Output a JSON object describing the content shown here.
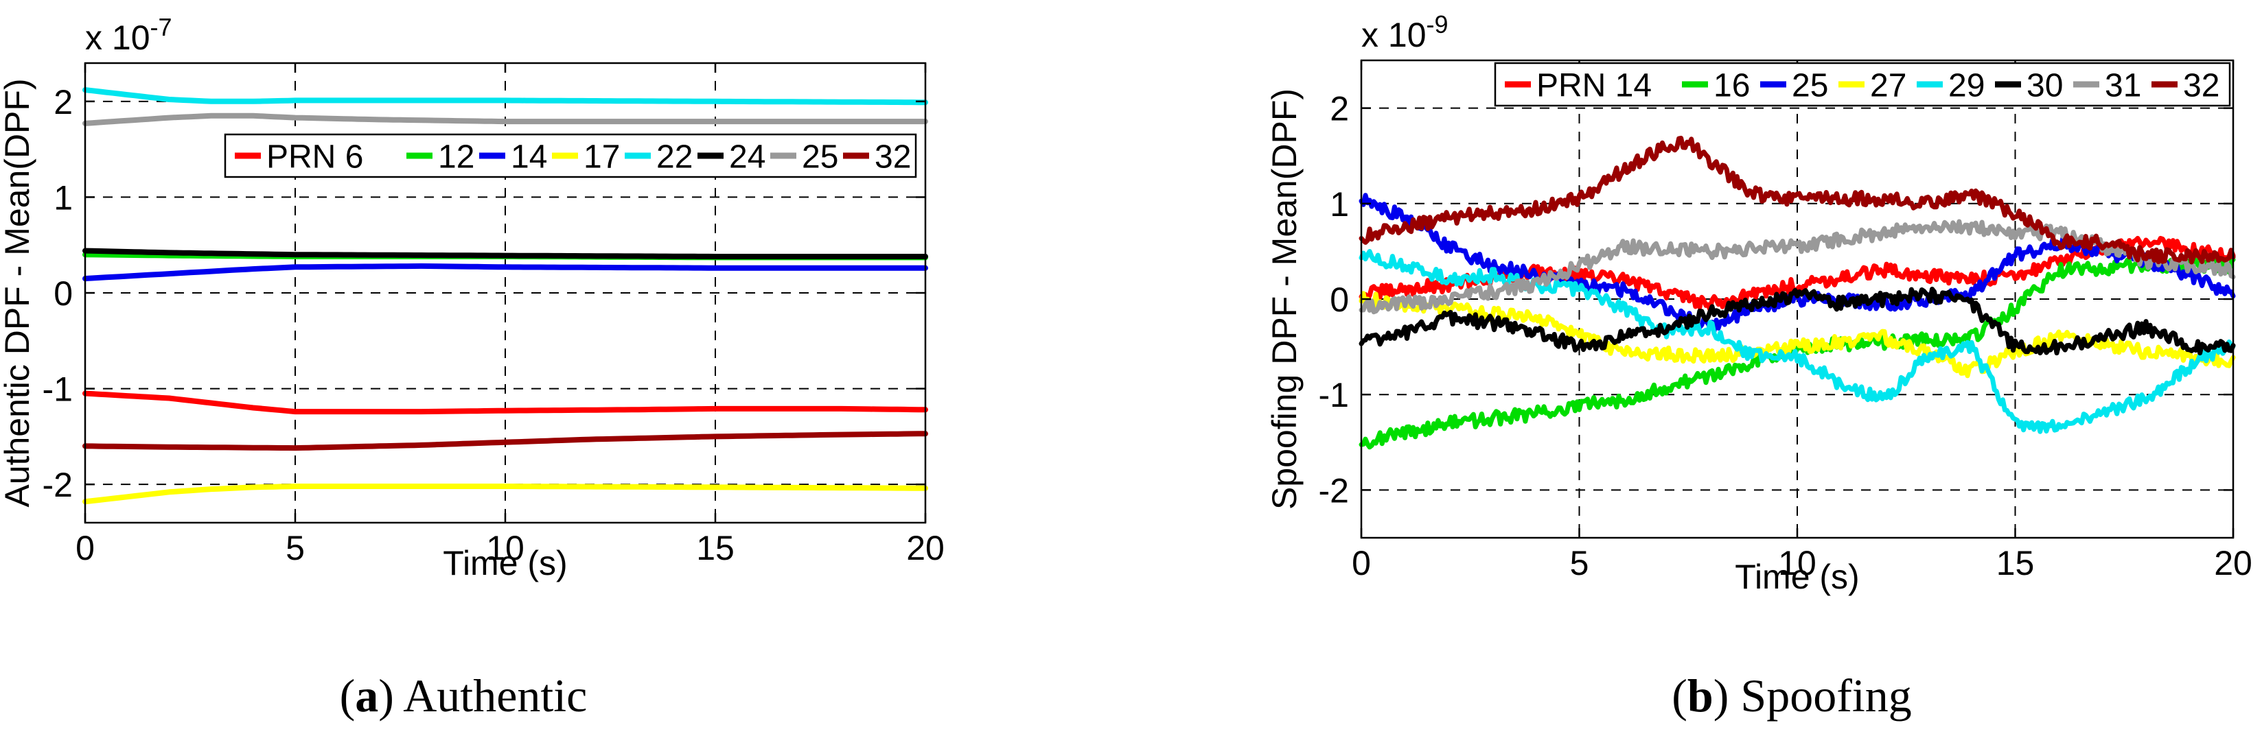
{
  "figure": {
    "captions": [
      {
        "label": "(a)",
        "letter": "a",
        "text": "Authentic"
      },
      {
        "label": "(b)",
        "letter": "b",
        "text": "Spoofing"
      }
    ]
  },
  "chart_data": [
    {
      "type": "line",
      "id": "authentic",
      "title": "",
      "xlabel": "Time (s)",
      "ylabel": "Authentic DPF - Mean(DPF)",
      "exponent_label": "x 10",
      "exponent_power": "-7",
      "xlim": [
        0,
        20
      ],
      "ylim": [
        -2.4,
        2.4
      ],
      "xticks": [
        0,
        5,
        10,
        15,
        20
      ],
      "yticks": [
        -2,
        -1,
        0,
        1,
        2
      ],
      "grid": "dashed",
      "legend_position": "upper-right",
      "legend_prefix": "PRN",
      "noise": 0,
      "series": [
        {
          "name": "6",
          "color": "#ff0000",
          "x": [
            0,
            2,
            4,
            5,
            8,
            10,
            13,
            15,
            18,
            20
          ],
          "y": [
            -1.05,
            -1.1,
            -1.2,
            -1.24,
            -1.24,
            -1.23,
            -1.22,
            -1.21,
            -1.21,
            -1.22
          ]
        },
        {
          "name": "12",
          "color": "#00dd00",
          "x": [
            0,
            2,
            5,
            10,
            15,
            20
          ],
          "y": [
            0.4,
            0.39,
            0.38,
            0.38,
            0.37,
            0.37
          ]
        },
        {
          "name": "14",
          "color": "#0000ee",
          "x": [
            0,
            2,
            4,
            5,
            8,
            10,
            15,
            20
          ],
          "y": [
            0.15,
            0.2,
            0.25,
            0.27,
            0.28,
            0.27,
            0.26,
            0.26
          ]
        },
        {
          "name": "17",
          "color": "#ffff00",
          "x": [
            0,
            1,
            2,
            3,
            4,
            5,
            10,
            15,
            20
          ],
          "y": [
            -2.18,
            -2.13,
            -2.08,
            -2.05,
            -2.03,
            -2.02,
            -2.02,
            -2.03,
            -2.04
          ]
        },
        {
          "name": "22",
          "color": "#00e5ee",
          "x": [
            0,
            1,
            2,
            3,
            4,
            5,
            10,
            15,
            20
          ],
          "y": [
            2.12,
            2.07,
            2.02,
            2.0,
            2.0,
            2.01,
            2.01,
            2.0,
            1.99
          ]
        },
        {
          "name": "24",
          "color": "#000000",
          "x": [
            0,
            2,
            5,
            10,
            15,
            20
          ],
          "y": [
            0.44,
            0.42,
            0.4,
            0.39,
            0.38,
            0.38
          ]
        },
        {
          "name": "25",
          "color": "#999999",
          "x": [
            0,
            1,
            2,
            3,
            4,
            5,
            7,
            10,
            15,
            20
          ],
          "y": [
            1.77,
            1.8,
            1.83,
            1.85,
            1.85,
            1.83,
            1.81,
            1.79,
            1.79,
            1.79
          ]
        },
        {
          "name": "32",
          "color": "#990000",
          "x": [
            0,
            2,
            5,
            8,
            10,
            12,
            15,
            18,
            20
          ],
          "y": [
            -1.6,
            -1.61,
            -1.62,
            -1.59,
            -1.56,
            -1.53,
            -1.5,
            -1.48,
            -1.47
          ]
        }
      ]
    },
    {
      "type": "line",
      "id": "spoofing",
      "title": "",
      "xlabel": "Time (s)",
      "ylabel": "Spoofing DPF - Mean(DPF)",
      "exponent_label": "x 10",
      "exponent_power": "-9",
      "xlim": [
        0,
        20
      ],
      "ylim": [
        -2.5,
        2.5
      ],
      "xticks": [
        0,
        5,
        10,
        15,
        20
      ],
      "yticks": [
        -2,
        -1,
        0,
        1,
        2
      ],
      "grid": "dashed",
      "legend_position": "top-right",
      "legend_prefix": "PRN",
      "noise": 0.07,
      "series": [
        {
          "name": "14",
          "color": "#ff0000",
          "x": [
            0,
            2,
            4,
            6,
            8,
            10,
            12,
            14,
            15,
            16,
            18,
            20
          ],
          "y": [
            0.05,
            0.15,
            0.3,
            0.2,
            -0.05,
            0.15,
            0.3,
            0.2,
            0.25,
            0.4,
            0.6,
            0.45
          ]
        },
        {
          "name": "16",
          "color": "#00dd00",
          "x": [
            0,
            2,
            4,
            6,
            8,
            10,
            12,
            14,
            15,
            16,
            18,
            20
          ],
          "y": [
            -1.5,
            -1.3,
            -1.2,
            -1.05,
            -0.8,
            -0.5,
            -0.45,
            -0.4,
            -0.1,
            0.3,
            0.35,
            0.35
          ]
        },
        {
          "name": "25",
          "color": "#0000ee",
          "x": [
            0,
            1,
            2,
            3,
            4,
            5,
            6,
            7,
            8,
            9,
            10,
            11,
            12,
            13,
            14,
            15,
            16,
            17,
            18,
            19,
            20
          ],
          "y": [
            1.05,
            0.85,
            0.55,
            0.35,
            0.25,
            0.15,
            0.1,
            -0.1,
            -0.3,
            -0.1,
            0.0,
            0.0,
            -0.05,
            0.0,
            0.05,
            0.45,
            0.6,
            0.5,
            0.4,
            0.25,
            0.05
          ]
        },
        {
          "name": "27",
          "color": "#ffff00",
          "x": [
            0,
            2,
            4,
            6,
            8,
            10,
            12,
            14,
            15,
            16,
            18,
            20
          ],
          "y": [
            0.0,
            -0.1,
            -0.2,
            -0.55,
            -0.6,
            -0.5,
            -0.4,
            -0.75,
            -0.55,
            -0.4,
            -0.55,
            -0.65
          ]
        },
        {
          "name": "29",
          "color": "#00e5ee",
          "x": [
            0,
            1,
            2,
            3,
            4,
            5,
            6,
            7,
            8,
            9,
            10,
            11,
            12,
            13,
            14,
            15,
            16,
            17,
            18,
            19,
            20
          ],
          "y": [
            0.45,
            0.35,
            0.2,
            0.25,
            0.15,
            0.1,
            -0.1,
            -0.35,
            -0.3,
            -0.6,
            -0.6,
            -0.9,
            -1.05,
            -0.6,
            -0.5,
            -1.3,
            -1.35,
            -1.2,
            -1.05,
            -0.7,
            -0.45
          ]
        },
        {
          "name": "30",
          "color": "#000000",
          "x": [
            0,
            1,
            2,
            3,
            4,
            5,
            6,
            7,
            8,
            9,
            10,
            11,
            12,
            13,
            14,
            15,
            16,
            17,
            18,
            19,
            20
          ],
          "y": [
            -0.45,
            -0.35,
            -0.2,
            -0.25,
            -0.35,
            -0.5,
            -0.4,
            -0.3,
            -0.15,
            -0.05,
            0.05,
            -0.05,
            0.0,
            0.05,
            -0.05,
            -0.5,
            -0.5,
            -0.4,
            -0.3,
            -0.5,
            -0.5
          ]
        },
        {
          "name": "31",
          "color": "#999999",
          "x": [
            0,
            2,
            4,
            5,
            6,
            8,
            10,
            12,
            14,
            15,
            16,
            17,
            18,
            20
          ],
          "y": [
            -0.1,
            0.0,
            0.15,
            0.35,
            0.55,
            0.5,
            0.55,
            0.7,
            0.75,
            0.7,
            0.7,
            0.55,
            0.4,
            0.3
          ]
        },
        {
          "name": "32",
          "color": "#990000",
          "x": [
            0,
            1,
            2,
            3,
            4,
            5,
            6,
            7,
            7.5,
            8,
            9,
            10,
            11,
            12,
            13,
            14,
            15,
            16,
            17,
            18,
            19,
            20
          ],
          "y": [
            0.65,
            0.75,
            0.85,
            0.9,
            0.95,
            1.05,
            1.35,
            1.6,
            1.65,
            1.45,
            1.1,
            1.05,
            1.05,
            1.05,
            1.0,
            1.1,
            0.9,
            0.6,
            0.6,
            0.45,
            0.45,
            0.45
          ]
        }
      ]
    }
  ]
}
